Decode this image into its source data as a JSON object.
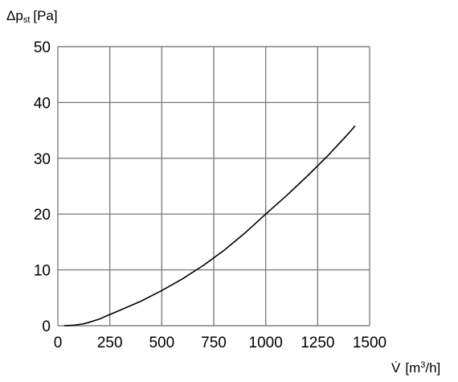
{
  "chart_data": {
    "type": "line",
    "title": "",
    "ylabel": {
      "symbol": "Δp",
      "subscript": "st",
      "unit": "[Pa]"
    },
    "xlabel": {
      "symbol": "V̇",
      "unit_prefix": "[m",
      "unit_superscript": "3",
      "unit_suffix": "/h]"
    },
    "xlim": [
      0,
      1500
    ],
    "ylim": [
      0,
      50
    ],
    "x_ticks": [
      0,
      250,
      500,
      750,
      1000,
      1250,
      1500
    ],
    "y_ticks": [
      0,
      10,
      20,
      30,
      40,
      50
    ],
    "x_tick_labels": [
      "0",
      "250",
      "500",
      "750",
      "1000",
      "1250",
      "1500"
    ],
    "y_tick_labels": [
      "0",
      "10",
      "20",
      "30",
      "40",
      "50"
    ],
    "grid": true,
    "legend": "none",
    "series": [
      {
        "x": [
          30,
          80,
          120,
          150,
          200,
          250,
          300,
          400,
          500,
          600,
          700,
          800,
          900,
          1000,
          1100,
          1200,
          1300,
          1400,
          1430
        ],
        "y": [
          0,
          0.1,
          0.3,
          0.6,
          1.2,
          2.0,
          2.8,
          4.4,
          6.3,
          8.4,
          10.8,
          13.5,
          16.6,
          20.0,
          23.3,
          26.8,
          30.5,
          34.5,
          35.8
        ]
      }
    ],
    "line_color": "#000000",
    "grid_color": "#808080"
  }
}
